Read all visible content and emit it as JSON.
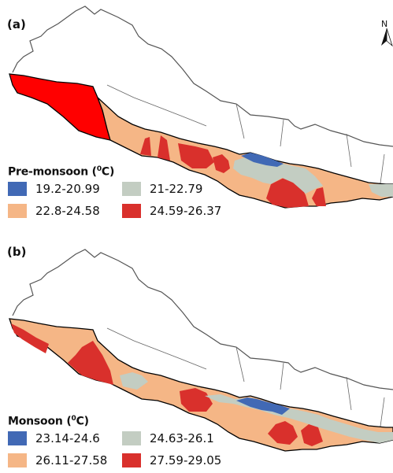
{
  "colors": {
    "class1": "#4169b5",
    "class2": "#c3cdc2",
    "class3": "#f5b686",
    "class4": "#d9302c",
    "extreme": "#ff0000",
    "boundary": "#000000",
    "country_outline": "#555555"
  },
  "north_arrow": {
    "letter": "N"
  },
  "panels": [
    {
      "label": "(a)",
      "legend": {
        "title": "Pre-monsoon (",
        "title_sup": "0",
        "title_unit": "C)",
        "items": [
          {
            "label": "19.2-20.99",
            "color": "#4169b5"
          },
          {
            "label": "21-22.79",
            "color": "#c3cdc2"
          },
          {
            "label": "22.8-24.58",
            "color": "#f5b686"
          },
          {
            "label": "24.59-26.37",
            "color": "#d9302c"
          }
        ]
      }
    },
    {
      "label": "(b)",
      "legend": {
        "title": "Monsoon (",
        "title_sup": "0",
        "title_unit": "C)",
        "items": [
          {
            "label": "23.14-24.6",
            "color": "#4169b5"
          },
          {
            "label": "24.63-26.1",
            "color": "#c3cdc2"
          },
          {
            "label": "26.11-27.58",
            "color": "#f5b686"
          },
          {
            "label": "27.59-29.05",
            "color": "#d9302c"
          }
        ]
      }
    }
  ]
}
